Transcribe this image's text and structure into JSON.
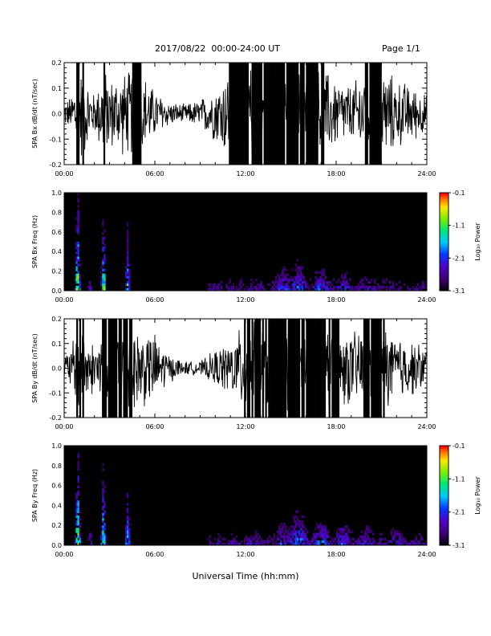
{
  "header": {
    "title": "2017/08/22  00:00-24:00 UT",
    "page": "Page 1/1"
  },
  "xlabel": "Universal Time (hh:mm)",
  "chart_data": [
    {
      "type": "line",
      "ylabel": "SPA Bx dB/dt (nT/sec)",
      "xlim": [
        0,
        24
      ],
      "ylim": [
        -0.2,
        0.2
      ],
      "x_ticks": [
        "00:00",
        "06:00",
        "12:00",
        "18:00",
        "24:00"
      ],
      "y_ticks": [
        "-0.2",
        "-0.1",
        "0.0",
        "0.1",
        "0.2"
      ],
      "series": [
        {
          "x": [
            0,
            0.5,
            0.8,
            1.2,
            2.0,
            2.6,
            3.0,
            4.0,
            5.0,
            6.0,
            7.0,
            8.0,
            9.0,
            10.0,
            11.0,
            12.0,
            13.0,
            14.0,
            15.0,
            16.0,
            17.0,
            18.0,
            19.0,
            20.0,
            21.0,
            22.0,
            23.0,
            24.0
          ],
          "amplitude": [
            0.05,
            0.08,
            0.2,
            0.2,
            0.08,
            0.2,
            0.15,
            0.18,
            0.2,
            0.1,
            0.05,
            0.04,
            0.06,
            0.12,
            0.2,
            0.2,
            0.2,
            0.2,
            0.2,
            0.2,
            0.2,
            0.15,
            0.12,
            0.2,
            0.2,
            0.15,
            0.12,
            0.08
          ]
        }
      ]
    },
    {
      "type": "heatmap",
      "ylabel": "SPA Bx Freq (Hz)",
      "xlim": [
        0,
        24
      ],
      "ylim": [
        0,
        1.0
      ],
      "x_ticks": [
        "00:00",
        "06:00",
        "12:00",
        "18:00",
        "24:00"
      ],
      "y_ticks": [
        "0.0",
        "0.2",
        "0.4",
        "0.6",
        "0.8",
        "1.0"
      ],
      "colorbar": {
        "label": "Log₁₀ Power",
        "range": [
          -3.1,
          -0.1
        ],
        "ticks": [
          "-0.1",
          "-1.1",
          "-2.1",
          "-3.1"
        ]
      },
      "activity": [
        {
          "t": 0.9,
          "strength": 0.95
        },
        {
          "t": 1.7,
          "strength": 0.35
        },
        {
          "t": 2.6,
          "strength": 0.85
        },
        {
          "t": 4.2,
          "strength": 0.75
        },
        {
          "t": 10.0,
          "strength": 0.2
        },
        {
          "t": 12.5,
          "strength": 0.3
        },
        {
          "t": 14.5,
          "strength": 0.45
        },
        {
          "t": 15.5,
          "strength": 0.5
        },
        {
          "t": 17.0,
          "strength": 0.45
        },
        {
          "t": 18.5,
          "strength": 0.4
        },
        {
          "t": 20.0,
          "strength": 0.35
        },
        {
          "t": 22.0,
          "strength": 0.3
        },
        {
          "t": 23.5,
          "strength": 0.25
        }
      ]
    },
    {
      "type": "line",
      "ylabel": "SPA By dB/dt (nT/sec)",
      "xlim": [
        0,
        24
      ],
      "ylim": [
        -0.2,
        0.2
      ],
      "x_ticks": [
        "00:00",
        "06:00",
        "12:00",
        "18:00",
        "24:00"
      ],
      "y_ticks": [
        "-0.2",
        "-0.1",
        "0.0",
        "0.1",
        "0.2"
      ],
      "series": [
        {
          "x": [
            0,
            0.5,
            0.8,
            1.2,
            2.0,
            2.6,
            3.0,
            4.0,
            5.0,
            6.0,
            7.0,
            8.0,
            9.0,
            10.0,
            11.0,
            12.0,
            13.0,
            14.0,
            15.0,
            16.0,
            17.0,
            18.0,
            19.0,
            20.0,
            21.0,
            22.0,
            23.0,
            24.0
          ],
          "amplitude": [
            0.06,
            0.1,
            0.2,
            0.2,
            0.1,
            0.2,
            0.2,
            0.2,
            0.18,
            0.15,
            0.06,
            0.03,
            0.03,
            0.08,
            0.12,
            0.2,
            0.2,
            0.2,
            0.2,
            0.2,
            0.2,
            0.2,
            0.15,
            0.2,
            0.2,
            0.15,
            0.12,
            0.1
          ]
        }
      ]
    },
    {
      "type": "heatmap",
      "ylabel": "SPA By Freq (Hz)",
      "xlim": [
        0,
        24
      ],
      "ylim": [
        0,
        1.0
      ],
      "x_ticks": [
        "00:00",
        "06:00",
        "12:00",
        "18:00",
        "24:00"
      ],
      "y_ticks": [
        "0.0",
        "0.2",
        "0.4",
        "0.6",
        "0.8",
        "1.0"
      ],
      "colorbar": {
        "label": "Log₁₀ Power",
        "range": [
          -3.1,
          -0.1
        ],
        "ticks": [
          "-0.1",
          "-1.1",
          "-2.1",
          "-3.1"
        ]
      },
      "activity": [
        {
          "t": 0.9,
          "strength": 0.95
        },
        {
          "t": 1.7,
          "strength": 0.4
        },
        {
          "t": 2.6,
          "strength": 0.85
        },
        {
          "t": 4.2,
          "strength": 0.7
        },
        {
          "t": 10.0,
          "strength": 0.25
        },
        {
          "t": 12.5,
          "strength": 0.35
        },
        {
          "t": 14.5,
          "strength": 0.45
        },
        {
          "t": 15.5,
          "strength": 0.55
        },
        {
          "t": 17.0,
          "strength": 0.5
        },
        {
          "t": 18.5,
          "strength": 0.45
        },
        {
          "t": 20.0,
          "strength": 0.4
        },
        {
          "t": 22.0,
          "strength": 0.4
        },
        {
          "t": 23.5,
          "strength": 0.3
        }
      ]
    }
  ]
}
